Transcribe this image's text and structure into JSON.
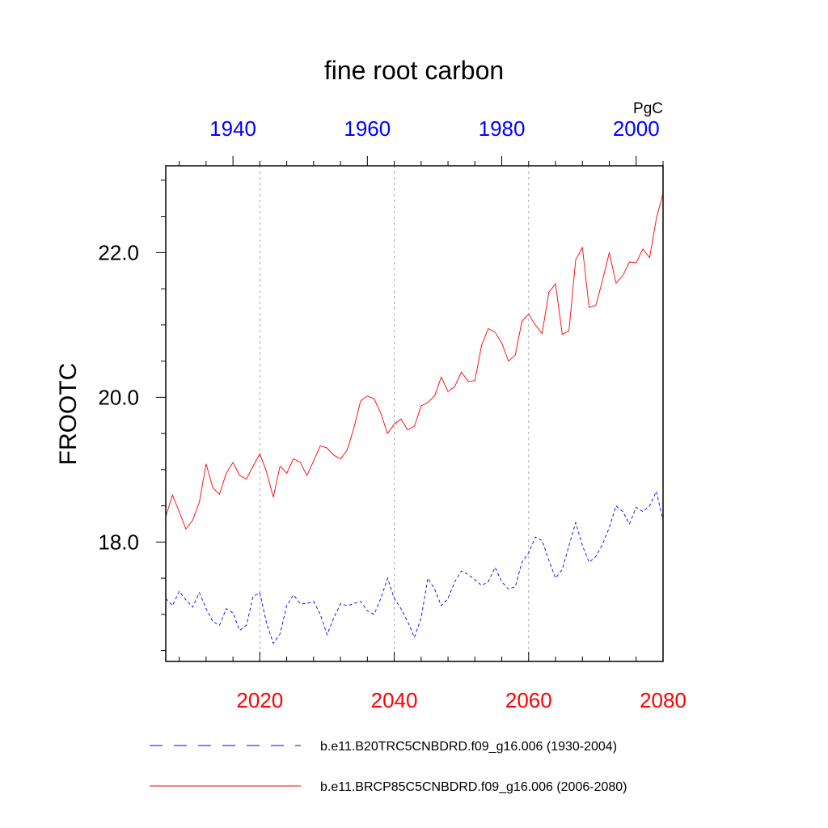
{
  "chart_data": {
    "type": "line",
    "title": "fine root carbon",
    "ylabel": "FROOTC",
    "units": "PgC",
    "ylim": [
      16.35,
      23.2
    ],
    "yticks": [
      18.0,
      20.0,
      22.0
    ],
    "ytick_labels": [
      "18.0",
      "20.0",
      "22.0"
    ],
    "bottom_axis": {
      "range": [
        2006,
        2080
      ],
      "ticks": [
        2020,
        2040,
        2060,
        2080
      ],
      "labels": [
        "2020",
        "2040",
        "2060",
        "2080"
      ],
      "color": "#ff0000"
    },
    "top_axis": {
      "range": [
        1930,
        2004
      ],
      "ticks": [
        1940,
        1960,
        1980,
        2000
      ],
      "labels": [
        "1940",
        "1960",
        "1980",
        "2000"
      ],
      "color": "#0000ff"
    },
    "gridlines_x": [
      2020,
      2040,
      2060
    ],
    "series": [
      {
        "name": "b.e11.BRCP85C5CNBDRD.f09_g16.006 (2006-2080)",
        "color": "#ff0000",
        "dash": "solid",
        "x_start": 2006,
        "values": [
          18.35,
          18.65,
          18.42,
          18.18,
          18.3,
          18.55,
          19.08,
          18.75,
          18.66,
          18.95,
          19.1,
          18.92,
          18.87,
          19.05,
          19.22,
          18.97,
          18.62,
          19.05,
          18.95,
          19.15,
          19.1,
          18.92,
          19.12,
          19.33,
          19.3,
          19.2,
          19.15,
          19.27,
          19.58,
          19.95,
          20.02,
          19.98,
          19.78,
          19.5,
          19.63,
          19.7,
          19.55,
          19.6,
          19.88,
          19.93,
          20.02,
          20.28,
          20.08,
          20.15,
          20.35,
          20.22,
          20.23,
          20.72,
          20.95,
          20.9,
          20.75,
          20.5,
          20.58,
          21.05,
          21.15,
          21.0,
          20.88,
          21.45,
          21.57,
          20.87,
          20.92,
          21.9,
          22.07,
          21.24,
          21.27,
          21.62,
          22.0,
          21.58,
          21.68,
          21.87,
          21.86,
          22.05,
          21.93,
          22.47,
          22.82
        ]
      },
      {
        "name": "b.e11.B20TRC5CNBDRD.f09_g16.006 (1930-2004)",
        "color": "#0000ff",
        "dash": "dashed",
        "x_start": 2006,
        "values": [
          17.22,
          17.12,
          17.32,
          17.2,
          17.1,
          17.3,
          17.08,
          16.9,
          16.85,
          17.08,
          17.02,
          16.78,
          16.85,
          17.25,
          17.3,
          16.88,
          16.6,
          16.73,
          17.12,
          17.27,
          17.15,
          17.15,
          17.18,
          17.0,
          16.72,
          16.95,
          17.15,
          17.12,
          17.15,
          17.18,
          17.05,
          17.0,
          17.22,
          17.5,
          17.22,
          17.08,
          16.9,
          16.68,
          16.95,
          17.5,
          17.35,
          17.12,
          17.22,
          17.45,
          17.6,
          17.55,
          17.48,
          17.4,
          17.45,
          17.65,
          17.45,
          17.35,
          17.38,
          17.72,
          17.85,
          18.07,
          18.02,
          17.75,
          17.5,
          17.62,
          17.95,
          18.27,
          17.95,
          17.72,
          17.8,
          17.97,
          18.2,
          18.5,
          18.42,
          18.25,
          18.48,
          18.42,
          18.5,
          18.7,
          18.3
        ]
      }
    ]
  }
}
